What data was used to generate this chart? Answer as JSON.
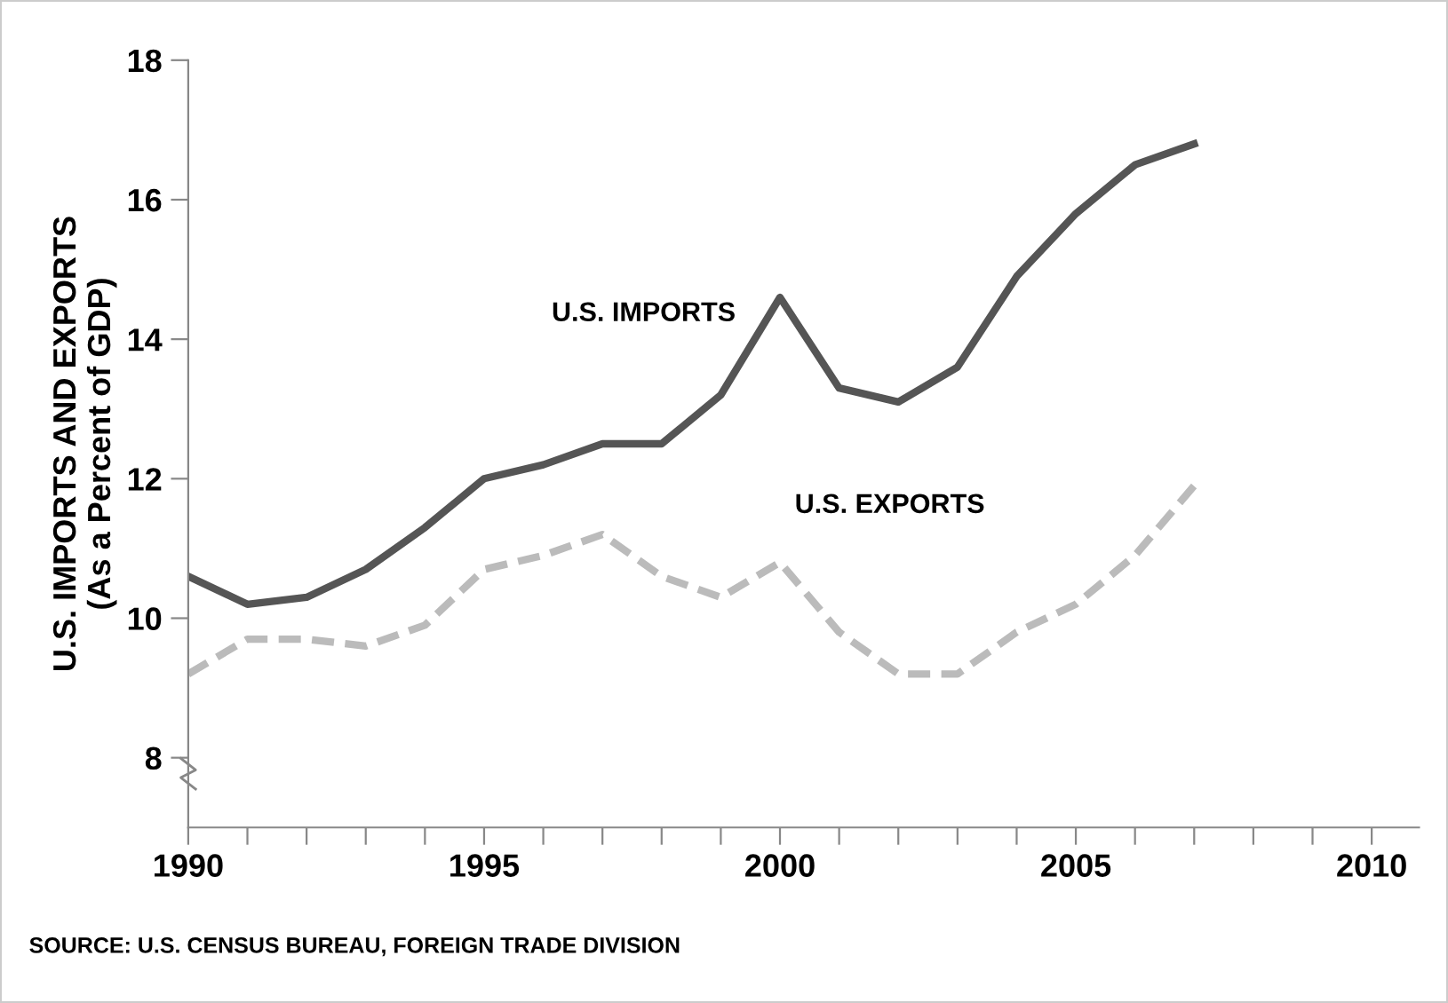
{
  "chart_data": {
    "type": "line",
    "ylabel": "U.S. IMPORTS AND EXPORTS\n(As a Percent of GDP)",
    "x": [
      1990,
      1991,
      1992,
      1993,
      1994,
      1995,
      1996,
      1997,
      1998,
      1999,
      2000,
      2001,
      2002,
      2003,
      2004,
      2005,
      2006,
      2007
    ],
    "series": [
      {
        "name": "U.S. IMPORTS",
        "color": "#555555",
        "line_style": "solid",
        "values": [
          10.6,
          10.2,
          10.3,
          10.7,
          11.3,
          12.0,
          12.2,
          12.5,
          12.5,
          13.2,
          14.6,
          13.3,
          13.1,
          13.6,
          14.9,
          15.8,
          16.5,
          16.8
        ]
      },
      {
        "name": "U.S. EXPORTS",
        "color": "#bbbbbb",
        "line_style": "dashed",
        "values": [
          9.2,
          9.7,
          9.7,
          9.6,
          9.9,
          10.7,
          10.9,
          11.2,
          10.6,
          10.3,
          10.8,
          9.8,
          9.2,
          9.2,
          9.8,
          10.2,
          10.9,
          11.9
        ]
      }
    ],
    "xlim": [
      1990,
      2010.8
    ],
    "ylim": [
      7,
      18
    ],
    "xticks": [
      1990,
      {
        "value": 1991,
        "label": null
      },
      {
        "value": 1992,
        "label": null
      },
      {
        "value": 1993,
        "label": null
      },
      {
        "value": 1994,
        "label": null
      },
      1995,
      {
        "value": 1996,
        "label": null
      },
      {
        "value": 1997,
        "label": null
      },
      {
        "value": 1998,
        "label": null
      },
      {
        "value": 1999,
        "label": null
      },
      2000,
      {
        "value": 2001,
        "label": null
      },
      {
        "value": 2002,
        "label": null
      },
      {
        "value": 2003,
        "label": null
      },
      {
        "value": 2004,
        "label": null
      },
      2005,
      {
        "value": 2006,
        "label": null
      },
      {
        "value": 2007,
        "label": null
      },
      {
        "value": 2008,
        "label": null
      },
      {
        "value": 2009,
        "label": null
      },
      2010
    ],
    "yticks": [
      8,
      10,
      12,
      14,
      16,
      18
    ],
    "grid": false,
    "legend": false,
    "marker": "none",
    "annotations": [
      "SOURCE: U.S. CENSUS BUREAU, FOREIGN TRADE DIVISION"
    ]
  }
}
